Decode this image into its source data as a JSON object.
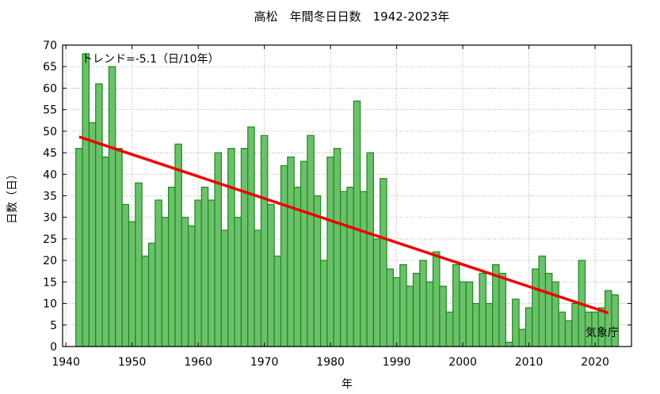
{
  "chart_data": {
    "type": "bar",
    "title": "高松　年間冬日日数　1942-2023年",
    "xlabel": "年",
    "ylabel": "日数（日）",
    "trend_label": "トレンド=-5.1（日/10年）",
    "source_label": "気象庁",
    "xlim": [
      1939.5,
      2025.5
    ],
    "ylim": [
      0,
      70
    ],
    "x_ticks": [
      1940,
      1950,
      1960,
      1970,
      1980,
      1990,
      2000,
      2010,
      2020
    ],
    "y_ticks": [
      0,
      5,
      10,
      15,
      20,
      25,
      30,
      35,
      40,
      45,
      50,
      55,
      60,
      65,
      70
    ],
    "grid": true,
    "series": [
      {
        "x": [
          1942,
          1943,
          1944,
          1945,
          1946,
          1947,
          1948,
          1949,
          1950,
          1951,
          1952,
          1953,
          1954,
          1955,
          1956,
          1957,
          1958,
          1959,
          1960,
          1961,
          1962,
          1963,
          1964,
          1965,
          1966,
          1967,
          1968,
          1969,
          1970,
          1971,
          1972,
          1973,
          1974,
          1975,
          1976,
          1977,
          1978,
          1979,
          1980,
          1981,
          1982,
          1983,
          1984,
          1985,
          1986,
          1987,
          1988,
          1989,
          1990,
          1991,
          1992,
          1993,
          1994,
          1995,
          1996,
          1997,
          1998,
          1999,
          2000,
          2001,
          2002,
          2003,
          2004,
          2005,
          2006,
          2007,
          2008,
          2009,
          2010,
          2011,
          2012,
          2013,
          2014,
          2015,
          2016,
          2017,
          2018,
          2019,
          2020,
          2021,
          2022,
          2023
        ],
        "values": [
          46,
          68,
          52,
          61,
          44,
          65,
          46,
          33,
          29,
          38,
          21,
          24,
          34,
          30,
          37,
          47,
          30,
          28,
          34,
          37,
          34,
          45,
          27,
          46,
          30,
          46,
          51,
          27,
          49,
          33,
          21,
          42,
          44,
          37,
          43,
          49,
          35,
          20,
          44,
          46,
          36,
          37,
          57,
          36,
          45,
          25,
          39,
          18,
          16,
          19,
          14,
          17,
          20,
          15,
          22,
          14,
          8,
          19,
          15,
          15,
          10,
          17,
          10,
          19,
          17,
          1,
          11,
          4,
          9,
          18,
          21,
          17,
          15,
          8,
          6,
          10,
          20,
          8,
          8,
          9,
          13,
          12
        ]
      }
    ],
    "trend": {
      "x": [
        1942,
        2022
      ],
      "y": [
        48.7,
        7.8
      ]
    },
    "colors": {
      "bar_fill": "#6cc06c",
      "bar_stroke": "#1a8a1a",
      "trend": "#ee0000",
      "grid": "#999999"
    }
  }
}
